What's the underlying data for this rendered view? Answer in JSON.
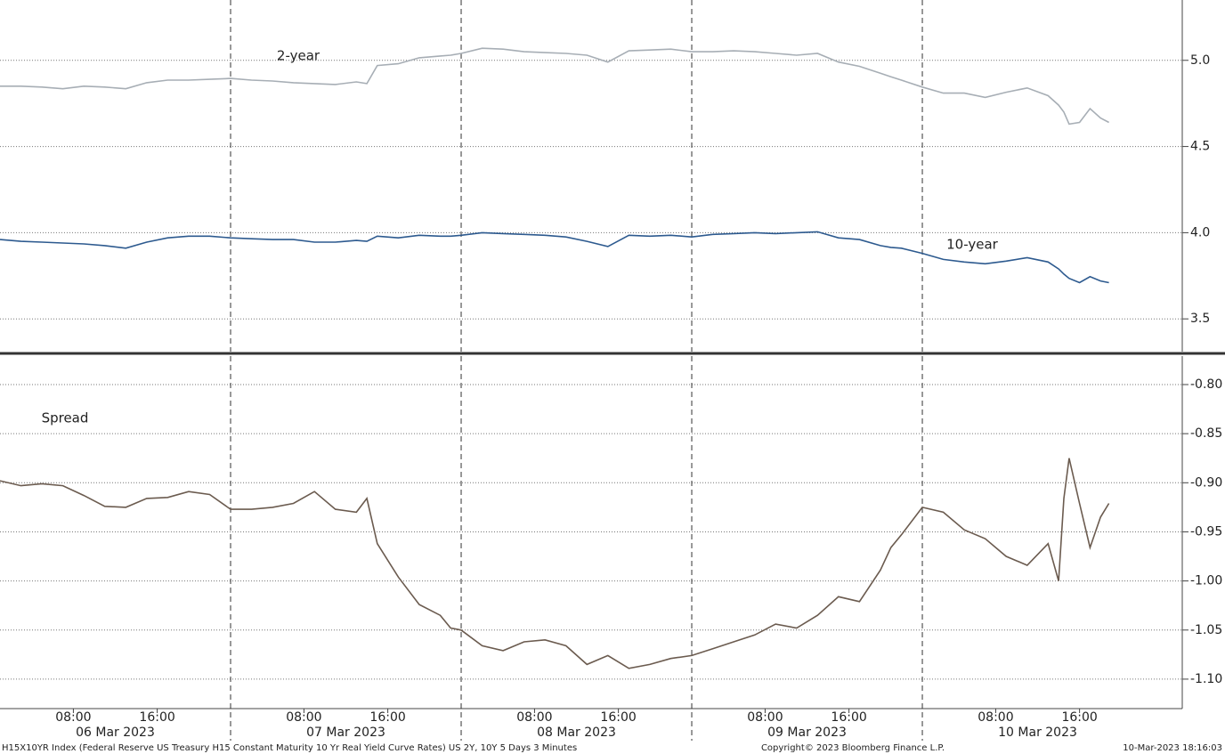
{
  "chart_data": [
    {
      "type": "line",
      "x": [
        0,
        2,
        4,
        6,
        8,
        10,
        12,
        14,
        16,
        18,
        20,
        22,
        24,
        26,
        28,
        30,
        32,
        34,
        35,
        36,
        38,
        40,
        42,
        43,
        44,
        46,
        48,
        50,
        52,
        54,
        56,
        58,
        60,
        62,
        64,
        66,
        68,
        70,
        72,
        74,
        76,
        78,
        80,
        82,
        84,
        85,
        86,
        88,
        90,
        92,
        94,
        96,
        98,
        100,
        101,
        101.5,
        102,
        103,
        104,
        105,
        105.8
      ],
      "series": [
        {
          "name": "2-year",
          "color": "#a7aeb5",
          "values": [
            4.85,
            4.85,
            4.845,
            4.835,
            4.85,
            4.845,
            4.835,
            4.87,
            4.885,
            4.885,
            4.89,
            4.895,
            4.885,
            4.88,
            4.87,
            4.865,
            4.86,
            4.875,
            4.865,
            4.97,
            4.98,
            5.015,
            5.025,
            5.03,
            5.04,
            5.07,
            5.065,
            5.05,
            5.045,
            5.04,
            5.03,
            4.99,
            5.055,
            5.06,
            5.065,
            5.05,
            5.05,
            5.055,
            5.05,
            5.04,
            5.03,
            5.04,
            4.99,
            4.965,
            4.925,
            4.905,
            4.885,
            4.845,
            4.81,
            4.81,
            4.785,
            4.815,
            4.84,
            4.795,
            4.74,
            4.7,
            4.63,
            4.64,
            4.72,
            4.665,
            4.64
          ]
        },
        {
          "name": "10-year",
          "color": "#2d5a8f",
          "values": [
            3.96,
            3.95,
            3.945,
            3.94,
            3.935,
            3.925,
            3.91,
            3.945,
            3.97,
            3.98,
            3.98,
            3.97,
            3.965,
            3.96,
            3.96,
            3.945,
            3.945,
            3.955,
            3.95,
            3.98,
            3.97,
            3.985,
            3.98,
            3.98,
            3.985,
            4.0,
            3.995,
            3.99,
            3.985,
            3.975,
            3.95,
            3.92,
            3.985,
            3.98,
            3.985,
            3.975,
            3.99,
            3.995,
            4.0,
            3.995,
            4.0,
            4.005,
            3.97,
            3.96,
            3.925,
            3.915,
            3.91,
            3.88,
            3.845,
            3.83,
            3.82,
            3.835,
            3.855,
            3.83,
            3.79,
            3.76,
            3.735,
            3.71,
            3.745,
            3.72,
            3.71
          ]
        }
      ],
      "xlim": [
        0,
        112.8
      ],
      "ylim": [
        3.31,
        5.35
      ],
      "yticks": [
        3.5,
        {
          "value": 4,
          "label": "4.0"
        },
        4.5,
        {
          "value": 5,
          "label": "5.0"
        }
      ],
      "day_breaks": [
        22,
        44,
        66,
        88
      ],
      "grid": true
    },
    {
      "type": "line",
      "x": [
        0,
        2,
        4,
        6,
        8,
        10,
        12,
        14,
        16,
        18,
        20,
        22,
        24,
        26,
        28,
        30,
        32,
        34,
        35,
        36,
        38,
        40,
        42,
        43,
        44,
        46,
        48,
        50,
        52,
        54,
        56,
        58,
        60,
        62,
        64,
        66,
        68,
        70,
        72,
        74,
        76,
        78,
        80,
        82,
        84,
        85,
        86,
        88,
        90,
        92,
        94,
        96,
        98,
        100,
        101,
        101.5,
        102,
        103,
        104,
        105,
        105.8
      ],
      "series": [
        {
          "name": "Spread",
          "color": "#6b5b4f",
          "values": [
            -0.898,
            -0.903,
            -0.901,
            -0.903,
            -0.913,
            -0.924,
            -0.925,
            -0.916,
            -0.915,
            -0.909,
            -0.912,
            -0.927,
            -0.927,
            -0.925,
            -0.921,
            -0.909,
            -0.927,
            -0.93,
            -0.916,
            -0.962,
            -0.996,
            -1.024,
            -1.035,
            -1.048,
            -1.05,
            -1.066,
            -1.071,
            -1.062,
            -1.06,
            -1.066,
            -1.085,
            -1.076,
            -1.089,
            -1.085,
            -1.079,
            -1.076,
            -1.069,
            -1.062,
            -1.055,
            -1.044,
            -1.048,
            -1.035,
            -1.016,
            -1.021,
            -0.989,
            -0.966,
            -0.953,
            -0.925,
            -0.93,
            -0.948,
            -0.957,
            -0.975,
            -0.984,
            -0.962,
            -1.0,
            -0.916,
            -0.875,
            -0.921,
            -0.966,
            -0.935,
            -0.921
          ]
        }
      ],
      "xlim": [
        0,
        112.8
      ],
      "ylim": [
        -1.13,
        -0.771
      ],
      "yticks": [
        {
          "value": -0.8,
          "label": "-0.80"
        },
        {
          "value": -0.85,
          "label": "-0.85"
        },
        {
          "value": -0.9,
          "label": "-0.90"
        },
        {
          "value": -0.95,
          "label": "-0.95"
        },
        {
          "value": -1.0,
          "label": "-1.00"
        },
        {
          "value": -1.05,
          "label": "-1.05"
        },
        {
          "value": -1.1,
          "label": "-1.10"
        }
      ],
      "xticks": [
        {
          "value": 7,
          "label": "08:00"
        },
        {
          "value": 15,
          "label": "16:00"
        },
        {
          "value": 29,
          "label": "08:00"
        },
        {
          "value": 37,
          "label": "16:00"
        },
        {
          "value": 51,
          "label": "08:00"
        },
        {
          "value": 59,
          "label": "16:00"
        },
        {
          "value": 73,
          "label": "08:00"
        },
        {
          "value": 81,
          "label": "16:00"
        },
        {
          "value": 95,
          "label": "08:00"
        },
        {
          "value": 103,
          "label": "16:00"
        }
      ],
      "date_labels": [
        {
          "value": 11,
          "label": "06 Mar 2023"
        },
        {
          "value": 33,
          "label": "07 Mar 2023"
        },
        {
          "value": 55,
          "label": "08 Mar 2023"
        },
        {
          "value": 77,
          "label": "09 Mar 2023"
        },
        {
          "value": 99,
          "label": "10 Mar 2023"
        }
      ],
      "day_breaks": [
        22,
        44,
        66,
        88
      ],
      "grid": true,
      "footnote": "H15X10YR Index (Federal Reserve US Treasury H15 Constant Maturity 10 Yr Real Yield Curve Rates) US 2Y, 10Y 5 Days 3 Minutes",
      "copyright": "Copyright© 2023 Bloomberg Finance L.P.",
      "timestamp": "10-Mar-2023 18:16:03"
    }
  ]
}
